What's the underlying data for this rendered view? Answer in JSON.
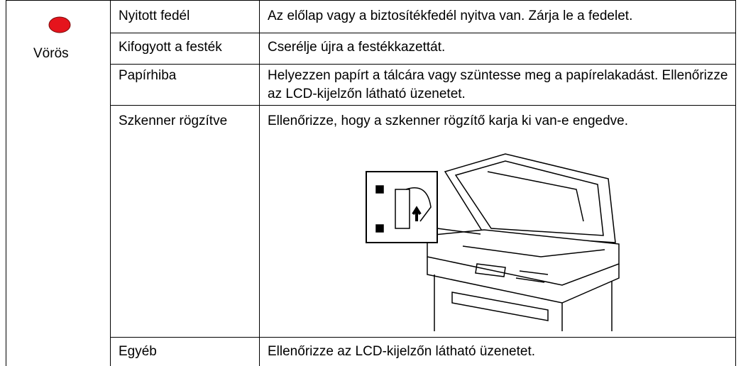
{
  "table": {
    "status": "Vörös",
    "rows": [
      [
        "Nyitott fedél",
        "Az előlap vagy a biztosítékfedél nyitva van. Zárja le a fedelet."
      ],
      [
        "Kifogyott a festék",
        "Cserélje újra a festékkazettát."
      ],
      [
        "Papírhiba",
        "Helyezzen papírt a tálcára vagy szüntesse meg a papírelakadást. Ellenőrizze az LCD-kijelzőn látható üzenetet."
      ],
      [
        "Szkenner rögzítve",
        "Ellenőrizze, hogy a szkenner rögzítő karja ki van-e engedve."
      ],
      [
        "Egyéb",
        "Ellenőrizze az LCD-kijelzőn látható üzenetet."
      ]
    ]
  }
}
